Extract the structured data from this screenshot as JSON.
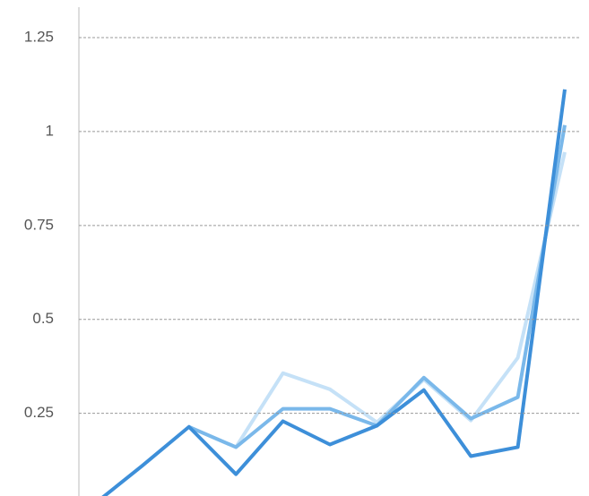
{
  "chart_data": {
    "type": "line",
    "categories": [
      null,
      null,
      null,
      null,
      null,
      null,
      null,
      null,
      null,
      null,
      null
    ],
    "series": [
      {
        "color": "#c5e1f7",
        "values": [
          null,
          null,
          0.214,
          0.16,
          0.357,
          0.314,
          0.226,
          0.34,
          0.231,
          0.398,
          0.945
        ]
      },
      {
        "color": "#7ab8ea",
        "values": [
          null,
          null,
          0.214,
          0.16,
          0.262,
          0.262,
          0.217,
          0.345,
          0.236,
          0.293,
          1.017
        ]
      },
      {
        "color": "#3d8fd9",
        "values": [
          0.01,
          0.11,
          0.214,
          0.088,
          0.229,
          0.167,
          0.217,
          0.312,
          0.136,
          0.16,
          1.112
        ]
      }
    ],
    "ylim": [
      0.03,
      1.35
    ],
    "yticks": [
      0.25,
      0.5,
      0.75,
      1,
      1.25
    ],
    "grid": true
  }
}
